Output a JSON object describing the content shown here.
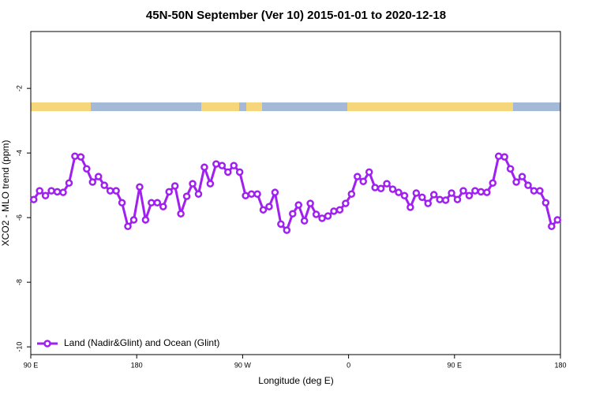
{
  "chart_data": {
    "type": "line",
    "title": "45N-50N September (Ver 10)   2015-01-01 to 2020-12-18",
    "x_label": "Longitude (deg E)",
    "y_label": "XCO2 - MLO trend (ppm)",
    "xlim": [
      90,
      540
    ],
    "ylim": [
      -10.24,
      -0.24
    ],
    "xticks": [
      {
        "value": 90,
        "label": "90 E"
      },
      {
        "value": 180,
        "label": "180"
      },
      {
        "value": 270,
        "label": "90 W"
      },
      {
        "value": 360,
        "label": "0"
      },
      {
        "value": 450,
        "label": "90 E"
      },
      {
        "value": 540,
        "label": "180"
      }
    ],
    "yticks": [
      -2,
      -4,
      -6,
      -8,
      -10
    ],
    "legend": "bottom-left",
    "x": [
      92.5,
      97.5,
      102.5,
      107.5,
      112.5,
      117.5,
      122.5,
      127.5,
      132.5,
      137.5,
      142.5,
      147.5,
      152.5,
      157.5,
      162.5,
      167.5,
      172.5,
      177.5,
      182.5,
      187.5,
      192.5,
      197.5,
      202.5,
      207.5,
      212.5,
      217.5,
      222.5,
      227.5,
      232.5,
      237.5,
      242.5,
      247.5,
      252.5,
      257.5,
      262.5,
      267.5,
      272.5,
      277.5,
      282.5,
      287.5,
      292.5,
      297.5,
      302.5,
      307.5,
      312.5,
      317.5,
      322.5,
      327.5,
      332.5,
      337.5,
      342.5,
      347.5,
      352.5,
      357.5,
      362.5,
      367.5,
      372.5,
      377.5,
      382.5,
      387.5,
      392.5,
      397.5,
      402.5,
      407.5,
      412.5,
      417.5,
      422.5,
      427.5,
      432.5,
      437.5,
      442.5,
      447.5,
      452.5,
      457.5,
      462.5,
      467.5,
      472.5,
      477.5,
      482.5,
      487.5,
      492.5,
      497.5,
      502.5,
      507.5,
      512.5,
      517.5,
      522.5,
      527.5,
      532.5,
      537.5
    ],
    "series": [
      {
        "name": "Land (Nadir&Glint) and Ocean (Glint)",
        "color": "#a020f0",
        "values": [
          -5.44,
          -5.17,
          -5.32,
          -5.17,
          -5.2,
          -5.22,
          -4.93,
          -4.1,
          -4.12,
          -4.49,
          -4.9,
          -4.73,
          -5.0,
          -5.17,
          -5.17,
          -5.54,
          -6.27,
          -6.07,
          -5.05,
          -6.07,
          -5.54,
          -5.54,
          -5.66,
          -5.2,
          -5.02,
          -5.88,
          -5.34,
          -4.95,
          -5.27,
          -4.44,
          -4.95,
          -4.34,
          -4.39,
          -4.59,
          -4.39,
          -4.59,
          -5.32,
          -5.27,
          -5.27,
          -5.76,
          -5.66,
          -5.22,
          -6.2,
          -6.39,
          -5.88,
          -5.61,
          -6.1,
          -5.56,
          -5.9,
          -6.02,
          -5.95,
          -5.8,
          -5.76,
          -5.56,
          -5.27,
          -4.73,
          -4.88,
          -4.59,
          -5.07,
          -5.1,
          -4.95,
          -5.12,
          -5.22,
          -5.32,
          -5.68,
          -5.24,
          -5.37,
          -5.56,
          -5.29,
          -5.44,
          -5.46,
          -5.24,
          -5.44,
          -5.17,
          -5.32,
          -5.17,
          -5.2,
          -5.22,
          -4.93,
          -4.1,
          -4.12,
          -4.49,
          -4.9,
          -4.73,
          -5.0,
          -5.17,
          -5.17,
          -5.54,
          -6.27,
          -6.07
        ]
      }
    ]
  }
}
